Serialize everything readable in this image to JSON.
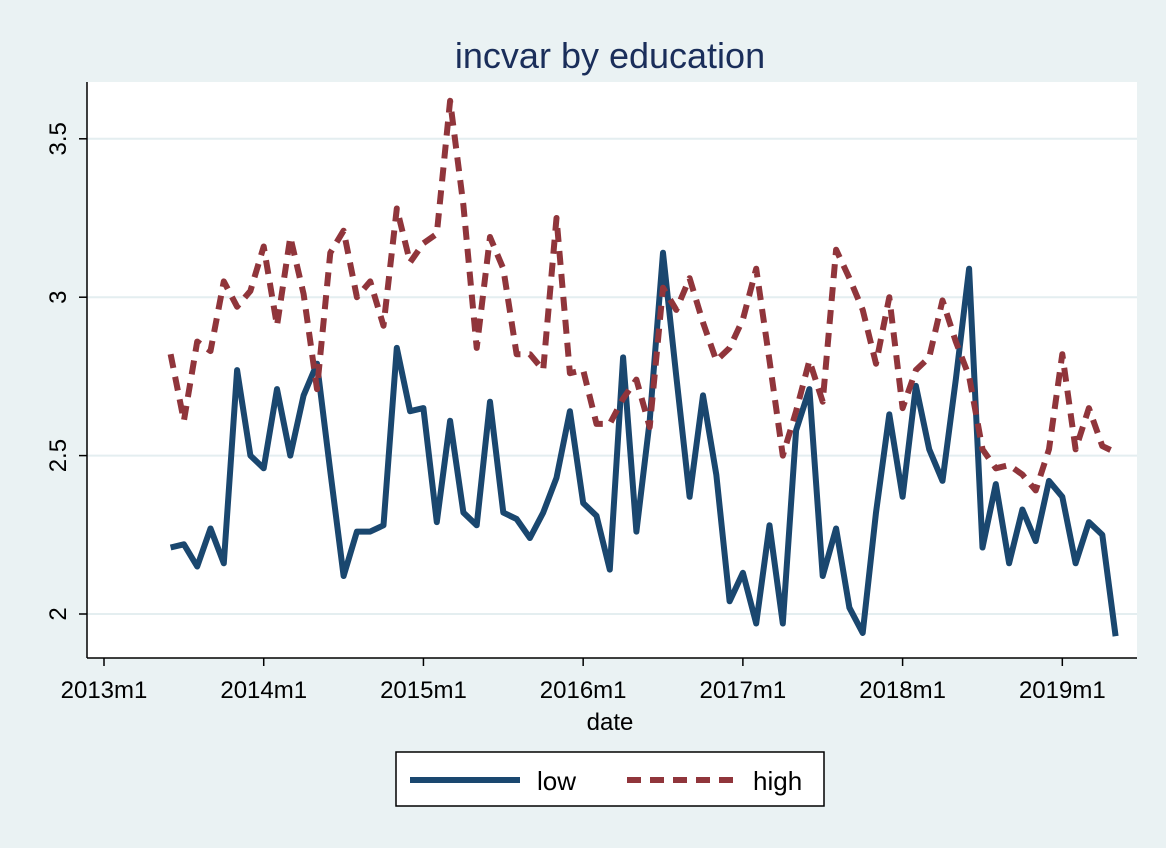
{
  "chart_data": {
    "type": "line",
    "title": "incvar by education",
    "xlabel": "date",
    "ylabel": "",
    "x_ticks": [
      "2013m1",
      "2014m1",
      "2015m1",
      "2016m1",
      "2017m1",
      "2018m1",
      "2019m1"
    ],
    "y_ticks": [
      "2",
      "2.5",
      "3",
      "3.5"
    ],
    "ylim": [
      1.9,
      3.65
    ],
    "xlim": [
      "2013-01",
      "2019-06"
    ],
    "grid": "horizontal",
    "legend_position": "bottom",
    "x": [
      "2013-06",
      "2013-07",
      "2013-08",
      "2013-09",
      "2013-10",
      "2013-11",
      "2013-12",
      "2014-01",
      "2014-02",
      "2014-03",
      "2014-04",
      "2014-05",
      "2014-06",
      "2014-07",
      "2014-08",
      "2014-09",
      "2014-10",
      "2014-11",
      "2014-12",
      "2015-01",
      "2015-02",
      "2015-03",
      "2015-04",
      "2015-05",
      "2015-06",
      "2015-07",
      "2015-08",
      "2015-09",
      "2015-10",
      "2015-11",
      "2015-12",
      "2016-01",
      "2016-02",
      "2016-03",
      "2016-04",
      "2016-05",
      "2016-06",
      "2016-07",
      "2016-08",
      "2016-09",
      "2016-10",
      "2016-11",
      "2016-12",
      "2017-01",
      "2017-02",
      "2017-03",
      "2017-04",
      "2017-05",
      "2017-06",
      "2017-07",
      "2017-08",
      "2017-09",
      "2017-10",
      "2017-11",
      "2017-12",
      "2018-01",
      "2018-02",
      "2018-03",
      "2018-04",
      "2018-05",
      "2018-06",
      "2018-07",
      "2018-08",
      "2018-09",
      "2018-10",
      "2018-11",
      "2018-12",
      "2019-01",
      "2019-02",
      "2019-03",
      "2019-04",
      "2019-05"
    ],
    "series": [
      {
        "name": "low",
        "color": "#1a476f",
        "style": "solid",
        "values": [
          2.21,
          2.22,
          2.15,
          2.27,
          2.16,
          2.77,
          2.5,
          2.46,
          2.71,
          2.5,
          2.69,
          2.79,
          2.45,
          2.12,
          2.26,
          2.26,
          2.28,
          2.84,
          2.64,
          2.65,
          2.29,
          2.61,
          2.32,
          2.28,
          2.67,
          2.32,
          2.3,
          2.24,
          2.32,
          2.43,
          2.64,
          2.35,
          2.31,
          2.14,
          2.81,
          2.26,
          2.61,
          3.14,
          2.75,
          2.37,
          2.69,
          2.44,
          2.04,
          2.13,
          1.97,
          2.28,
          1.97,
          2.58,
          2.71,
          2.12,
          2.27,
          2.02,
          1.94,
          2.32,
          2.63,
          2.37,
          2.72,
          2.52,
          2.42,
          2.74,
          3.09,
          2.21,
          2.41,
          2.16,
          2.33,
          2.23,
          2.42,
          2.37,
          2.16,
          2.29,
          2.25,
          1.93
        ]
      },
      {
        "name": "high",
        "color": "#90353b",
        "style": "dashed",
        "values": [
          2.82,
          2.61,
          2.86,
          2.83,
          3.05,
          2.97,
          3.02,
          3.16,
          2.91,
          3.19,
          3.01,
          2.71,
          3.14,
          3.21,
          3.0,
          3.05,
          2.91,
          3.28,
          3.11,
          3.17,
          3.2,
          3.62,
          3.29,
          2.84,
          3.19,
          3.09,
          2.82,
          2.82,
          2.77,
          3.25,
          2.76,
          2.77,
          2.6,
          2.6,
          2.68,
          2.74,
          2.59,
          3.03,
          2.96,
          3.06,
          2.92,
          2.8,
          2.84,
          2.93,
          3.09,
          2.8,
          2.5,
          2.64,
          2.8,
          2.67,
          3.15,
          3.06,
          2.96,
          2.79,
          3.0,
          2.65,
          2.77,
          2.81,
          2.99,
          2.86,
          2.75,
          2.52,
          2.46,
          2.47,
          2.44,
          2.39,
          2.52,
          2.82,
          2.52,
          2.65,
          2.53,
          2.51
        ]
      }
    ]
  }
}
